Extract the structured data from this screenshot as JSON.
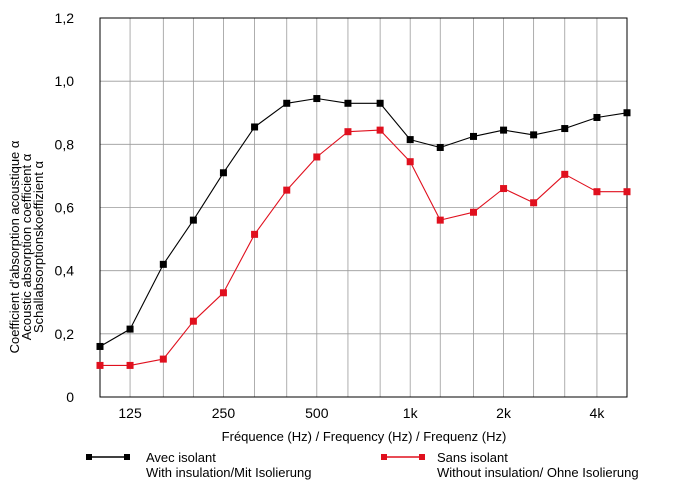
{
  "chart_data": {
    "type": "line",
    "xlabel": "Fréquence (Hz) / Frequency (Hz) / Frequenz (Hz)",
    "ylabel_lines": [
      "Coefficient d'absorption acoustique  α",
      "Acoustic absorption coefficient  α",
      "Schallabsorptionskoeffizient  α"
    ],
    "x_scale": "log",
    "x_unit": "Hz",
    "xlim": [
      100,
      5000
    ],
    "x_ticks": [
      {
        "value": 125,
        "label": "125"
      },
      {
        "value": 250,
        "label": "250"
      },
      {
        "value": 500,
        "label": "500"
      },
      {
        "value": 1000,
        "label": "1k"
      },
      {
        "value": 2000,
        "label": "2k"
      },
      {
        "value": 4000,
        "label": "4k"
      }
    ],
    "ylim": [
      0,
      1.2
    ],
    "y_ticks": [
      {
        "value": 0,
        "label": "0"
      },
      {
        "value": 0.2,
        "label": "0,2"
      },
      {
        "value": 0.4,
        "label": "0,4"
      },
      {
        "value": 0.6,
        "label": "0,6"
      },
      {
        "value": 0.8,
        "label": "0,8"
      },
      {
        "value": 1.0,
        "label": "1,0"
      },
      {
        "value": 1.2,
        "label": "1,2"
      }
    ],
    "grid": true,
    "x": [
      100,
      125,
      160,
      200,
      250,
      315,
      400,
      500,
      630,
      800,
      1000,
      1250,
      1600,
      2000,
      2500,
      3150,
      4000,
      5000
    ],
    "series": [
      {
        "name": "Avec isolant",
        "name_line2": "With insulation/Mit Isolierung",
        "color": "#000000",
        "values": [
          0.16,
          0.215,
          0.42,
          0.56,
          0.71,
          0.855,
          0.93,
          0.945,
          0.93,
          0.93,
          0.815,
          0.79,
          0.825,
          0.845,
          0.83,
          0.85,
          0.885,
          0.9
        ]
      },
      {
        "name": "Sans isolant",
        "name_line2": "Without insulation/ Ohne Isolierung",
        "color": "#e0101e",
        "values": [
          0.1,
          0.1,
          0.12,
          0.24,
          0.33,
          0.515,
          0.655,
          0.76,
          0.84,
          0.845,
          0.745,
          0.56,
          0.585,
          0.66,
          0.615,
          0.705,
          0.65,
          0.65
        ]
      }
    ],
    "legend_position": "bottom"
  }
}
